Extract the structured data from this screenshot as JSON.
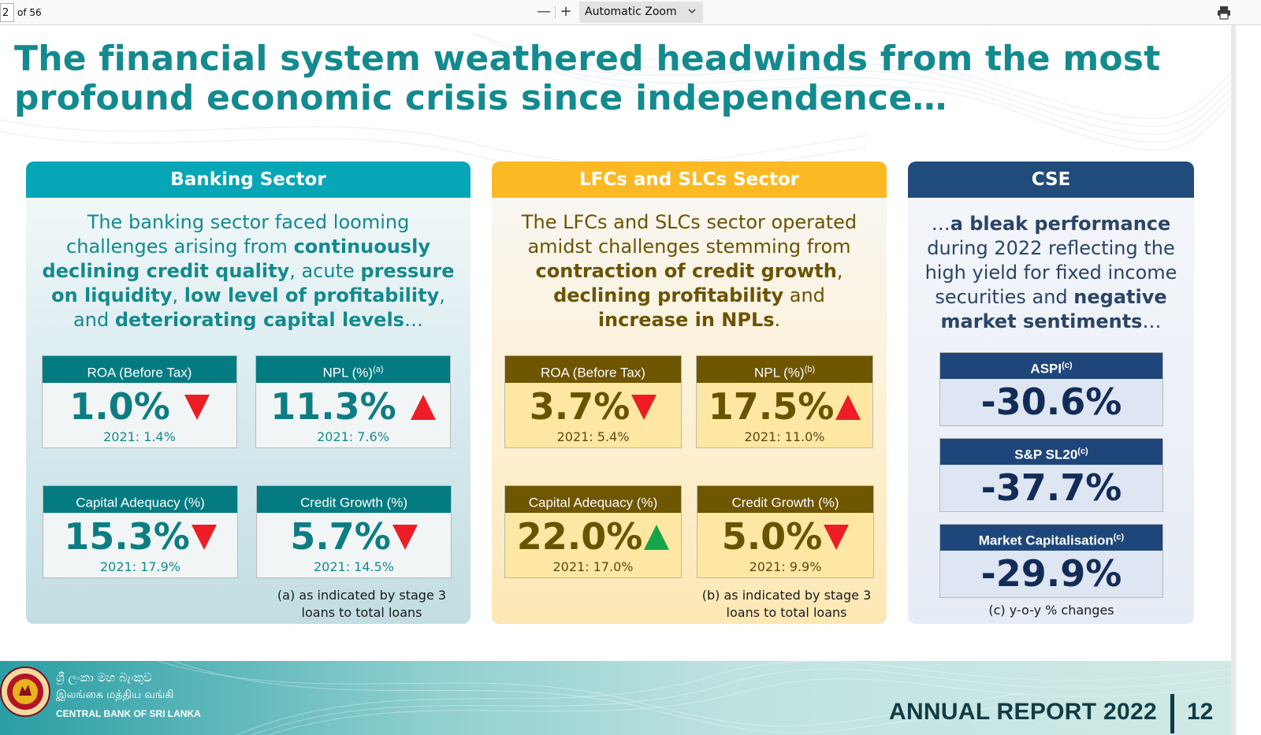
{
  "viewer": {
    "page_number": "2",
    "page_count": "of 56",
    "zoom_out": "—",
    "zoom_in": "+",
    "zoom_label": "Automatic Zoom"
  },
  "headline": "The financial system weathered headwinds from the most profound economic crisis since independence…",
  "banking": {
    "title": "Banking Sector",
    "intro_parts": [
      {
        "t": "The banking sector faced looming challenges arising from ",
        "b": false
      },
      {
        "t": "continuously declining credit quality",
        "b": true
      },
      {
        "t": ", acute ",
        "b": false
      },
      {
        "t": "pressure on liquidity",
        "b": true
      },
      {
        "t": ", ",
        "b": false
      },
      {
        "t": "low level of profitability",
        "b": true
      },
      {
        "t": ", and ",
        "b": false
      },
      {
        "t": "deteriorating capital levels",
        "b": true
      },
      {
        "t": "…",
        "b": false
      }
    ],
    "kpis": [
      {
        "label": "ROA (Before Tax)",
        "sup": "",
        "value": "1.0%",
        "trend": "down",
        "prev": "2021: 1.4%"
      },
      {
        "label": "NPL (%)",
        "sup": "(a)",
        "value": "11.3%",
        "trend": "up",
        "prev": "2021: 7.6%"
      },
      {
        "label": "Capital Adequacy (%)",
        "sup": "",
        "value": "15.3%",
        "trend": "down",
        "prev": "2021: 17.9%"
      },
      {
        "label": "Credit Growth (%)",
        "sup": "",
        "value": "5.7%",
        "trend": "down",
        "prev": "2021: 14.5%"
      }
    ],
    "note": "(a) as indicated by stage 3 loans to total loans"
  },
  "lfc": {
    "title": "LFCs and SLCs Sector",
    "intro_parts": [
      {
        "t": "The LFCs and SLCs sector operated amidst challenges stemming from ",
        "b": false
      },
      {
        "t": "contraction of credit growth",
        "b": true
      },
      {
        "t": ", ",
        "b": false
      },
      {
        "t": "declining profitability",
        "b": true
      },
      {
        "t": " and ",
        "b": false
      },
      {
        "t": "increase in NPLs",
        "b": true
      },
      {
        "t": ".",
        "b": false
      }
    ],
    "kpis": [
      {
        "label": "ROA (Before Tax)",
        "sup": "",
        "value": "3.7%",
        "trend": "down",
        "prev": "2021: 5.4%"
      },
      {
        "label": "NPL (%)",
        "sup": "(b)",
        "value": "17.5%",
        "trend": "up",
        "prev": "2021: 11.0%"
      },
      {
        "label": "Capital Adequacy (%)",
        "sup": "",
        "value": "22.0%",
        "trend": "up-good",
        "prev": "2021: 17.0%"
      },
      {
        "label": "Credit Growth (%)",
        "sup": "",
        "value": "5.0%",
        "trend": "down",
        "prev": "2021: 9.9%"
      }
    ],
    "note": "(b) as indicated by stage 3 loans to total loans"
  },
  "cse": {
    "title": "CSE",
    "intro_parts": [
      {
        "t": "…",
        "b": false
      },
      {
        "t": "a bleak performance",
        "b": true
      },
      {
        "t": " during 2022 reflecting the high yield for fixed income securities and ",
        "b": false
      },
      {
        "t": "negative market sentiments",
        "b": true
      },
      {
        "t": "…",
        "b": false
      }
    ],
    "boxes": [
      {
        "label": "ASPI",
        "sup": "(c)",
        "value": "-30.6%"
      },
      {
        "label": "S&P SL20",
        "sup": "(c)",
        "value": "-37.7%"
      },
      {
        "label": "Market Capitalisation",
        "sup": "(c)",
        "value": "-29.9%"
      }
    ],
    "note": "(c) y-o-y % changes"
  },
  "footer": {
    "bank_name_sinhala": "ශ්‍රී ලංකා මහ බැංකුව",
    "bank_name_tamil": "இலங்கை மத்திய வங்கி",
    "bank_name_english": "CENTRAL BANK OF SRI LANKA",
    "report_title": "ANNUAL REPORT 2022",
    "page": "12"
  },
  "colors": {
    "headline": "#138a8e",
    "banking_header": "#07a6b7",
    "lfc_header": "#fbb924",
    "cse_header": "#204c7b",
    "arrow_down": "#ee1c25",
    "arrow_up_bad": "#ee1c25",
    "arrow_up_good": "#16a34a"
  },
  "icons": [
    "minus-icon",
    "plus-icon",
    "chevron-down-icon",
    "print-icon",
    "central-bank-seal-icon",
    "down-arrow-icon",
    "up-arrow-icon"
  ]
}
